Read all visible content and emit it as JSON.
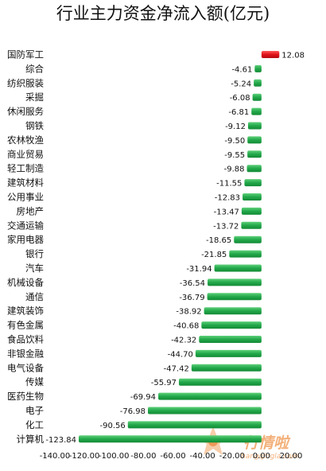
{
  "chart_data": {
    "type": "bar",
    "orientation": "horizontal",
    "title": "行业主力资金净流入额(亿元)",
    "xlabel": "",
    "ylabel": "",
    "xlim": [
      -140,
      20
    ],
    "x_ticks": [
      "-140.00",
      "-120.00",
      "-100.00",
      "-80.00",
      "-60.00",
      "-40.00",
      "-20.00",
      "0.00",
      "20.00"
    ],
    "grid": false,
    "legend": "none",
    "colors": {
      "positive": "#e0141b",
      "negative": "#22a84a"
    },
    "categories": [
      "国防军工",
      "综合",
      "纺织服装",
      "采掘",
      "休闲服务",
      "钢铁",
      "农林牧渔",
      "商业贸易",
      "轻工制造",
      "建筑材料",
      "公用事业",
      "房地产",
      "交通运输",
      "家用电器",
      "银行",
      "汽车",
      "机械设备",
      "通信",
      "建筑装饰",
      "有色金属",
      "食品饮料",
      "非银金融",
      "电气设备",
      "传媒",
      "医药生物",
      "电子",
      "化工",
      "计算机"
    ],
    "values": [
      12.08,
      -4.61,
      -5.24,
      -6.08,
      -6.81,
      -9.12,
      -9.5,
      -9.55,
      -9.88,
      -11.55,
      -12.83,
      -13.47,
      -13.72,
      -18.65,
      -21.85,
      -31.94,
      -36.54,
      -36.79,
      -38.92,
      -40.68,
      -42.32,
      -44.7,
      -47.42,
      -55.97,
      -69.94,
      -76.98,
      -90.56,
      -123.84
    ],
    "value_labels": [
      "12.08",
      "-4.61",
      "-5.24",
      "-6.08",
      "-6.81",
      "-9.12",
      "-9.50",
      "-9.55",
      "-9.88",
      "-11.55",
      "-12.83",
      "-13.47",
      "-13.72",
      "-18.65",
      "-21.85",
      "-31.94",
      "-36.54",
      "-36.79",
      "-38.92",
      "-40.68",
      "-42.32",
      "-44.70",
      "-47.42",
      "-55.97",
      "-69.94",
      "-76.98",
      "-90.56",
      "-123.84"
    ]
  },
  "watermark": {
    "brand": "行情啦",
    "url": "hangqingla.com"
  }
}
